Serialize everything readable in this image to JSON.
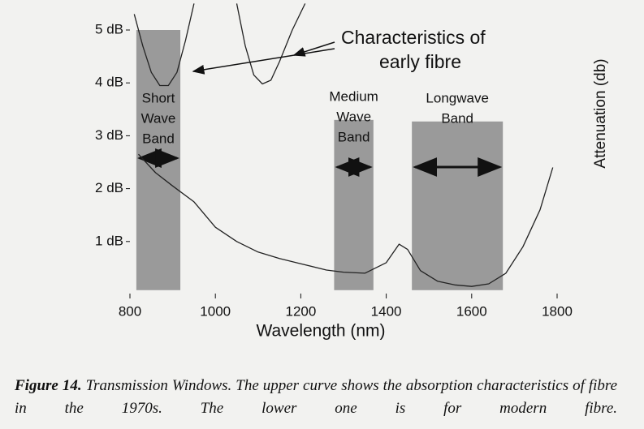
{
  "chart_data": {
    "type": "line",
    "xlabel": "Wavelength (nm)",
    "ylabel": "Attenuation (db)",
    "xlim": [
      800,
      1800
    ],
    "ylim": [
      0,
      5
    ],
    "xticks": [
      800,
      1000,
      1200,
      1400,
      1600,
      1800
    ],
    "yticks": [
      {
        "value": 1,
        "label": "1 dB"
      },
      {
        "value": 2,
        "label": "2 dB"
      },
      {
        "value": 3,
        "label": "3 dB"
      },
      {
        "value": 4,
        "label": "4 dB"
      },
      {
        "value": 5,
        "label": "5 dB"
      }
    ],
    "bands": [
      {
        "lines": [
          "Short",
          "Wave",
          "Band"
        ],
        "start": 815,
        "end": 918,
        "top": 5,
        "bottom": 0.08,
        "color": "#9a9a9a"
      },
      {
        "lines": [
          "Medium",
          "Wave",
          "Band"
        ],
        "start": 1278,
        "end": 1370,
        "top": 3.3,
        "bottom": 0.08,
        "color": "#9a9a9a"
      },
      {
        "lines": [
          "Longwave",
          "Band"
        ],
        "start": 1460,
        "end": 1673,
        "top": 3.27,
        "bottom": 0.08,
        "color": "#9a9a9a"
      }
    ],
    "annotation": [
      "Characteristics of",
      "early fibre"
    ],
    "series": [
      {
        "color": "#222222",
        "x": [
          810,
          830,
          850,
          870,
          890,
          910,
          930,
          950,
          1000,
          1050,
          1070,
          1090,
          1110,
          1130,
          1150,
          1180,
          1210
        ],
        "values": [
          5.3,
          4.7,
          4.2,
          3.95,
          3.95,
          4.2,
          4.8,
          5.5,
          null,
          5.5,
          4.7,
          4.15,
          3.98,
          4.05,
          4.4,
          5.0,
          5.5
        ]
      },
      {
        "color": "#222222",
        "x": [
          820,
          860,
          900,
          950,
          1000,
          1050,
          1100,
          1150,
          1200,
          1260,
          1300,
          1350,
          1400,
          1430,
          1450,
          1480,
          1520,
          1560,
          1600,
          1640,
          1680,
          1720,
          1760,
          1790
        ],
        "values": [
          2.65,
          2.3,
          2.05,
          1.75,
          1.27,
          1.0,
          0.8,
          0.68,
          0.58,
          0.46,
          0.42,
          0.4,
          0.6,
          0.95,
          0.85,
          0.45,
          0.25,
          0.18,
          0.15,
          0.2,
          0.4,
          0.9,
          1.6,
          2.4
        ]
      }
    ],
    "caption_label": "Figure 14.",
    "caption": "Transmission Windows. The upper curve shows the absorption characteristics of fibre in the 1970s. The lower one is for modern fibre."
  }
}
